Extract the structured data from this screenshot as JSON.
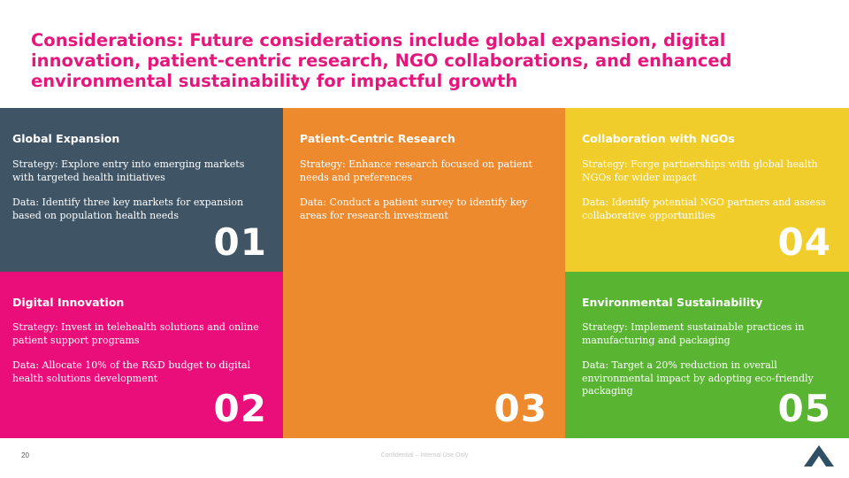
{
  "slide": {
    "title": "Considerations: Future considerations include global expansion, digital innovation, patient-centric research, NGO collaborations, and enhanced environmental sustainability for impactful growth",
    "page_number": "20",
    "confidential": "Confidential – Internal Use Only"
  },
  "cards": [
    {
      "title": "Global Expansion",
      "strategy": "Strategy: Explore entry into emerging markets with targeted health initiatives",
      "data": "Data: Identify three key markets for expansion based on population health needs",
      "number": "01",
      "color": "#3f5465"
    },
    {
      "title": "Digital Innovation",
      "strategy": "Strategy: Invest in telehealth solutions and online patient support programs",
      "data": "Data: Allocate 10% of the R&D budget to digital health solutions development",
      "number": "02",
      "color": "#ea0e7b"
    },
    {
      "title": "Patient-Centric Research",
      "strategy": "Strategy: Enhance research focused on patient needs and preferences",
      "data": "Data: Conduct a patient survey to identify key areas for research investment",
      "number": "03",
      "color": "#ec8a2d"
    },
    {
      "title": "Collaboration with NGOs",
      "strategy": "Strategy: Forge partnerships with global health NGOs for wider impact",
      "data": "Data: Identify potential NGO partners and assess collaborative opportunities",
      "number": "04",
      "color": "#f1cd2c"
    },
    {
      "title": "Environmental Sustainability",
      "strategy": "Strategy: Implement sustainable practices in manufacturing and packaging",
      "data": "Data: Target a 20% reduction in overall environmental impact by adopting eco-friendly packaging",
      "number": "05",
      "color": "#58b431"
    }
  ],
  "logo": {
    "icon": "company-logo-icon",
    "color": "#2f4f66"
  }
}
